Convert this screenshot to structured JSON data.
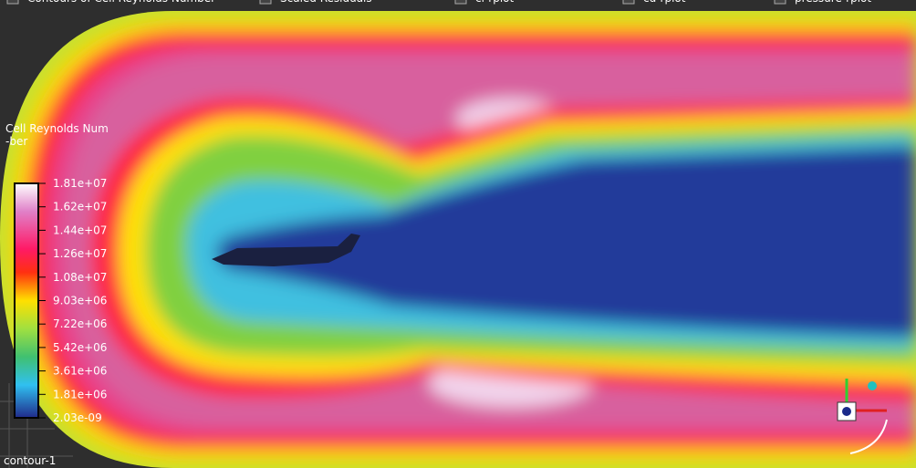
{
  "tabs": [
    "Contours of Cell Reynolds Number",
    "Scaled Residuals",
    "cl-rplot",
    "cd-rplot",
    "pressure-rplot"
  ],
  "legend": {
    "title": [
      "Cell Reynolds Num",
      "-ber"
    ],
    "labels": [
      "1.81e+07",
      "1.62e+07",
      "1.44e+07",
      "1.26e+07",
      "1.08e+07",
      "9.03e+06",
      "7.22e+06",
      "5.42e+06",
      "3.61e+06",
      "1.81e+06",
      "2.03e-09"
    ]
  },
  "footer": "contour-1"
}
